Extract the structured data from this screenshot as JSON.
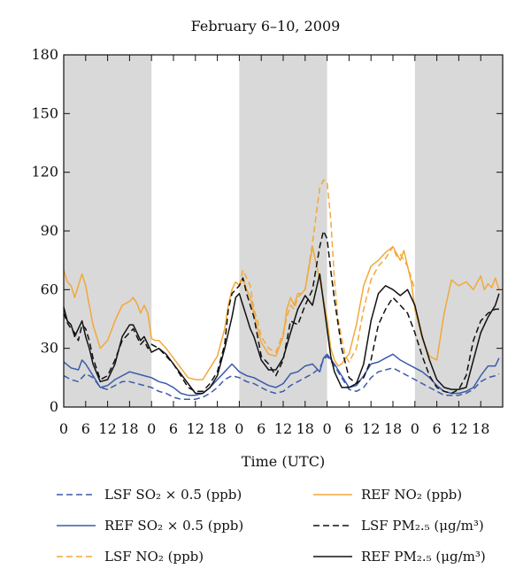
{
  "chart_data": {
    "type": "line",
    "title": "February 6–10, 2009",
    "xlabel": "Time (UTC)",
    "ylabel": "",
    "ylim": [
      0,
      180
    ],
    "yticks": [
      0,
      30,
      60,
      90,
      120,
      150,
      180
    ],
    "xlim": [
      0,
      120
    ],
    "x_tick_values": [
      0,
      6,
      12,
      18,
      24,
      30,
      36,
      42,
      48,
      54,
      60,
      66,
      72,
      78,
      84,
      90,
      96,
      102,
      108,
      114
    ],
    "x_tick_labels": [
      "0",
      "6",
      "12",
      "18",
      "0",
      "6",
      "12",
      "18",
      "0",
      "6",
      "12",
      "18",
      "0",
      "6",
      "12",
      "18",
      "0",
      "6",
      "12",
      "18"
    ],
    "grid": false,
    "shaded_bands": [
      [
        0,
        24
      ],
      [
        48,
        72
      ],
      [
        96,
        120
      ]
    ],
    "shade_color": "#d9d9d9",
    "colors": {
      "orange": "#f2a83a",
      "blue": "#3b5aa9",
      "black": "#111111"
    },
    "series": [
      {
        "name": "REF NO2 (ppb)",
        "color": "#f2a83a",
        "dash": "solid",
        "x": [
          0,
          1,
          2,
          3,
          4,
          5,
          6,
          7,
          8,
          10,
          12,
          14,
          16,
          18,
          19,
          20,
          21,
          22,
          23,
          24,
          25,
          26,
          28,
          30,
          32,
          34,
          36,
          38,
          40,
          42,
          44,
          45,
          46,
          47,
          48,
          49,
          50,
          51,
          52,
          53,
          54,
          56,
          58,
          60,
          61,
          62,
          63,
          64,
          65,
          66,
          68,
          70,
          72,
          73,
          74,
          75,
          76,
          77,
          78,
          80,
          82,
          84,
          86,
          88,
          90,
          92,
          93,
          94,
          95,
          96,
          98,
          100,
          102,
          104,
          106,
          108,
          110,
          112,
          114,
          115,
          116,
          117,
          118,
          119
        ],
        "y": [
          70,
          64,
          62,
          56,
          62,
          68,
          62,
          52,
          42,
          30,
          34,
          44,
          52,
          54,
          56,
          53,
          48,
          52,
          48,
          35,
          34,
          34,
          30,
          25,
          20,
          15,
          14,
          14,
          20,
          26,
          40,
          52,
          60,
          64,
          62,
          66,
          60,
          56,
          48,
          40,
          33,
          27,
          26,
          36,
          50,
          56,
          52,
          58,
          58,
          60,
          82,
          65,
          45,
          30,
          24,
          21,
          22,
          25,
          27,
          42,
          62,
          72,
          75,
          79,
          82,
          75,
          80,
          72,
          64,
          50,
          35,
          26,
          24,
          48,
          65,
          62,
          64,
          60,
          67,
          60,
          63,
          61,
          66,
          60
        ]
      },
      {
        "name": "LSF NO2 (ppb)",
        "color": "#f2a83a",
        "dash": "dash",
        "x": [
          48,
          49,
          50,
          51,
          52,
          53,
          54,
          56,
          58,
          60,
          61,
          62,
          63,
          64,
          65,
          66,
          68,
          70,
          71,
          72,
          73,
          74,
          75,
          76,
          77,
          78,
          80,
          82,
          84,
          86,
          88,
          90,
          91,
          92,
          94,
          96
        ],
        "y": [
          62,
          70,
          66,
          62,
          50,
          44,
          36,
          30,
          28,
          38,
          46,
          52,
          50,
          56,
          58,
          60,
          84,
          112,
          116,
          115,
          96,
          65,
          45,
          35,
          26,
          23,
          30,
          50,
          65,
          72,
          76,
          82,
          77,
          78,
          72,
          60
        ]
      },
      {
        "name": "REF SO2 × 0.5 (ppb)",
        "color": "#3b5aa9",
        "dash": "solid",
        "x": [
          0,
          2,
          4,
          5,
          6,
          8,
          10,
          12,
          14,
          16,
          18,
          20,
          22,
          24,
          26,
          28,
          30,
          32,
          34,
          36,
          38,
          40,
          42,
          44,
          46,
          48,
          50,
          52,
          54,
          56,
          58,
          60,
          62,
          64,
          66,
          68,
          70,
          71,
          72,
          74,
          76,
          78,
          80,
          82,
          84,
          86,
          88,
          90,
          92,
          94,
          96,
          98,
          100,
          102,
          104,
          106,
          108,
          110,
          112,
          114,
          116,
          118,
          119
        ],
        "y": [
          23,
          20,
          19,
          24,
          22,
          16,
          10,
          11,
          14,
          16,
          18,
          17,
          16,
          15,
          13,
          12,
          10,
          7,
          6,
          6,
          7,
          10,
          14,
          18,
          22,
          18,
          16,
          15,
          13,
          11,
          10,
          12,
          17,
          18,
          21,
          22,
          18,
          25,
          27,
          22,
          16,
          10,
          11,
          16,
          22,
          23,
          25,
          27,
          24,
          22,
          20,
          18,
          15,
          11,
          8,
          7,
          7,
          8,
          10,
          16,
          21,
          21,
          25
        ]
      },
      {
        "name": "LSF SO2 × 0.5 (ppb)",
        "color": "#3b5aa9",
        "dash": "dash",
        "x": [
          0,
          2,
          4,
          6,
          8,
          10,
          12,
          14,
          16,
          18,
          20,
          22,
          24,
          26,
          28,
          30,
          32,
          34,
          36,
          38,
          40,
          42,
          44,
          46,
          48,
          50,
          52,
          54,
          56,
          58,
          60,
          62,
          64,
          66,
          68,
          70,
          71,
          72,
          74,
          76,
          78,
          80,
          82,
          84,
          86,
          88,
          90,
          92,
          94,
          96,
          98,
          100,
          102,
          104,
          106,
          108,
          110,
          112,
          114,
          116,
          118,
          119
        ],
        "y": [
          16,
          14,
          13,
          17,
          15,
          10,
          9,
          11,
          13,
          13,
          12,
          11,
          10,
          8,
          7,
          5,
          4,
          4,
          4,
          5,
          7,
          10,
          14,
          16,
          15,
          13,
          12,
          10,
          8,
          7,
          8,
          11,
          13,
          15,
          17,
          20,
          24,
          26,
          21,
          15,
          9,
          8,
          10,
          15,
          18,
          19,
          20,
          18,
          16,
          14,
          12,
          10,
          8,
          6,
          6,
          6,
          7,
          9,
          13,
          15,
          16,
          17
        ]
      },
      {
        "name": "LSF PM2.5 (μg/m³)",
        "color": "#111111",
        "dash": "dash",
        "x": [
          0,
          1,
          2,
          3,
          4,
          5,
          6,
          7,
          8,
          10,
          12,
          14,
          16,
          18,
          19,
          20,
          21,
          22,
          23,
          24,
          26,
          28,
          30,
          32,
          34,
          36,
          38,
          40,
          42,
          44,
          45,
          46,
          47,
          48,
          49,
          50,
          51,
          52,
          53,
          54,
          56,
          58,
          60,
          62,
          64,
          66,
          68,
          70,
          71,
          72,
          73,
          74,
          76,
          78,
          80,
          82,
          84,
          86,
          88,
          90,
          92,
          94,
          96,
          98,
          100,
          102,
          104,
          106,
          108,
          110,
          112,
          114,
          116,
          118,
          119
        ],
        "y": [
          48,
          43,
          40,
          38,
          34,
          42,
          40,
          34,
          25,
          14,
          16,
          24,
          34,
          38,
          40,
          36,
          32,
          34,
          30,
          32,
          30,
          26,
          22,
          16,
          10,
          8,
          8,
          12,
          18,
          32,
          50,
          58,
          60,
          62,
          66,
          58,
          52,
          46,
          36,
          26,
          22,
          16,
          24,
          44,
          42,
          52,
          60,
          82,
          90,
          86,
          70,
          55,
          30,
          15,
          12,
          15,
          24,
          42,
          50,
          56,
          52,
          48,
          38,
          26,
          16,
          10,
          8,
          7,
          9,
          16,
          34,
          44,
          48,
          50,
          50
        ]
      },
      {
        "name": "REF PM2.5 (μg/m³)",
        "color": "#111111",
        "dash": "solid",
        "x": [
          0,
          1,
          2,
          3,
          4,
          5,
          6,
          7,
          8,
          10,
          12,
          14,
          16,
          18,
          19,
          20,
          21,
          22,
          23,
          24,
          26,
          28,
          30,
          32,
          34,
          36,
          38,
          40,
          42,
          44,
          46,
          47,
          48,
          49,
          50,
          51,
          52,
          53,
          54,
          56,
          58,
          60,
          62,
          64,
          66,
          68,
          70,
          72,
          73,
          74,
          76,
          78,
          80,
          82,
          84,
          86,
          88,
          90,
          92,
          94,
          96,
          98,
          100,
          102,
          104,
          106,
          108,
          110,
          112,
          114,
          116,
          118,
          119
        ],
        "y": [
          51,
          44,
          42,
          36,
          40,
          44,
          36,
          30,
          22,
          13,
          14,
          22,
          36,
          42,
          42,
          38,
          34,
          36,
          32,
          28,
          30,
          27,
          22,
          17,
          12,
          7,
          7,
          10,
          16,
          30,
          46,
          56,
          58,
          52,
          46,
          40,
          36,
          30,
          24,
          19,
          19,
          25,
          38,
          50,
          57,
          52,
          68,
          40,
          26,
          18,
          10,
          10,
          12,
          22,
          44,
          58,
          62,
          60,
          57,
          60,
          52,
          36,
          24,
          14,
          10,
          9,
          9,
          10,
          24,
          38,
          46,
          52,
          58
        ]
      }
    ]
  },
  "legend": {
    "items": [
      {
        "label": "LSF SO₂ × 0.5 (ppb)",
        "color": "#3b5aa9",
        "dash": "dash"
      },
      {
        "label": "REF SO₂ × 0.5 (ppb)",
        "color": "#3b5aa9",
        "dash": "solid"
      },
      {
        "label": "LSF NO₂ (ppb)",
        "color": "#f2a83a",
        "dash": "dash"
      },
      {
        "label": "REF NO₂ (ppb)",
        "color": "#f2a83a",
        "dash": "solid"
      },
      {
        "label": "LSF PM₂.₅ (μg/m³)",
        "color": "#111111",
        "dash": "dash"
      },
      {
        "label": "REF PM₂.₅ (μg/m³)",
        "color": "#111111",
        "dash": "solid"
      }
    ]
  }
}
